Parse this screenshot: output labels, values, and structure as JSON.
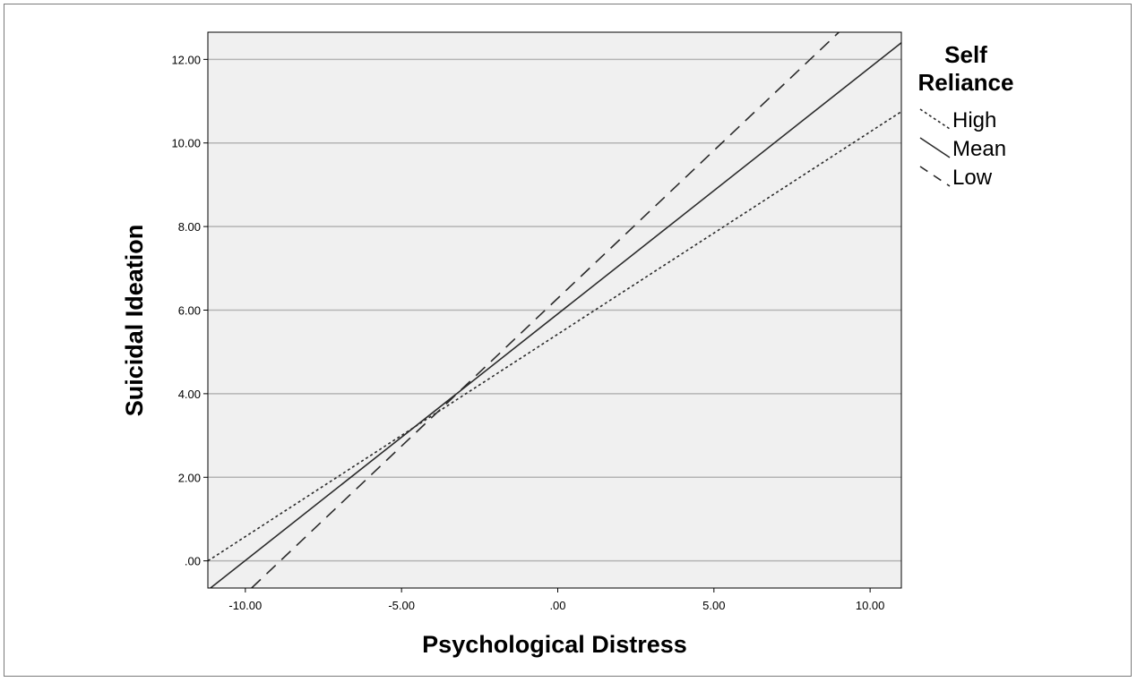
{
  "chart_data": {
    "type": "line",
    "xlabel": "Psychological Distress",
    "ylabel": "Suicidal Ideation",
    "xlim": [
      -11.2,
      11.0
    ],
    "ylim": [
      -0.65,
      12.65
    ],
    "x_ticks": [
      -10,
      -5,
      0,
      5,
      10
    ],
    "x_tick_labels": [
      "-10.00",
      "-5.00",
      ".00",
      "5.00",
      "10.00"
    ],
    "y_ticks": [
      0,
      2,
      4,
      6,
      8,
      10,
      12
    ],
    "y_tick_labels": [
      ".00",
      "2.00",
      "4.00",
      "6.00",
      "8.00",
      "10.00",
      "12.00"
    ],
    "grid": "horizontal",
    "legend": {
      "title_lines": [
        "Self",
        "Reliance"
      ],
      "position": "right"
    },
    "series": [
      {
        "name": "High",
        "style": "dotted",
        "x": [
          -11.2,
          11.0
        ],
        "y": [
          0.0,
          10.75
        ]
      },
      {
        "name": "Mean",
        "style": "solid",
        "x": [
          -11.2,
          11.0
        ],
        "y": [
          -0.7,
          12.4
        ]
      },
      {
        "name": "Low",
        "style": "dashed",
        "x": [
          -9.8,
          9.0
        ],
        "y": [
          -0.65,
          12.65
        ]
      }
    ]
  }
}
